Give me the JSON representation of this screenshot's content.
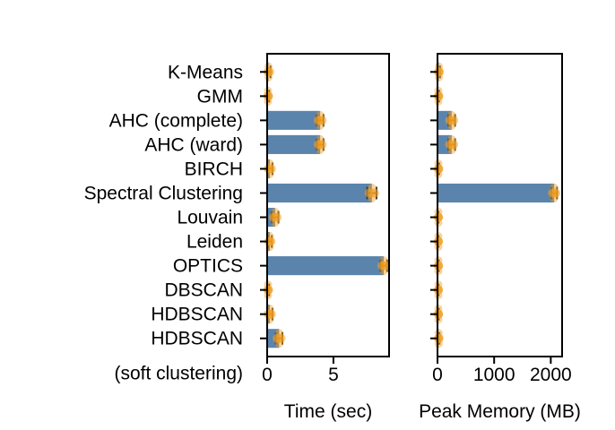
{
  "chart_data": [
    {
      "type": "bar",
      "orientation": "horizontal",
      "title": "",
      "xlabel": "Time (sec)",
      "ylabel": "",
      "xlim": [
        0,
        9.2
      ],
      "xticks": [
        0,
        5
      ],
      "xtick_labels": [
        "0",
        "5"
      ],
      "categories": [
        "K-Means",
        "GMM",
        "AHC (complete)",
        "AHC (ward)",
        "BIRCH",
        "Spectral Clustering",
        "Louvain",
        "Leiden",
        "OPTICS",
        "DBSCAN",
        "HDBSCAN",
        "HDBSCAN\n(soft clustering)"
      ],
      "values": [
        0.1,
        0.05,
        4.0,
        4.0,
        0.2,
        7.9,
        0.6,
        0.2,
        8.8,
        0.05,
        0.2,
        0.9
      ],
      "error_bars": [
        0.15,
        0.1,
        0.25,
        0.25,
        0.2,
        0.35,
        0.25,
        0.15,
        0.25,
        0.1,
        0.2,
        0.25
      ],
      "series_color": "#5b84ad",
      "marker_color": "#f4a020",
      "grid": false
    },
    {
      "type": "bar",
      "orientation": "horizontal",
      "title": "",
      "xlabel": "Peak Memory (MB)",
      "ylabel": "",
      "xlim": [
        0,
        2200
      ],
      "xticks": [
        0,
        1000,
        2000
      ],
      "xtick_labels": [
        "0",
        "1000",
        "2000"
      ],
      "categories": [
        "K-Means",
        "GMM",
        "AHC (complete)",
        "AHC (ward)",
        "BIRCH",
        "Spectral Clustering",
        "Louvain",
        "Leiden",
        "OPTICS",
        "DBSCAN",
        "HDBSCAN",
        "HDBSCAN\n(soft clustering)"
      ],
      "values": [
        25,
        15,
        250,
        250,
        15,
        2060,
        10,
        10,
        15,
        10,
        15,
        20
      ],
      "error_bars": [
        20,
        15,
        60,
        60,
        15,
        50,
        10,
        10,
        10,
        10,
        10,
        15
      ],
      "series_color": "#5b84ad",
      "marker_color": "#f4a020",
      "grid": false
    }
  ]
}
